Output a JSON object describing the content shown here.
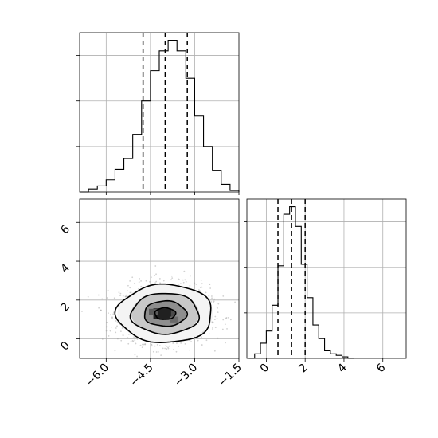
{
  "chart_data": {
    "type": "corner",
    "x_param": {
      "ticks": [
        -6.0,
        -4.5,
        -3.0,
        -1.5
      ],
      "tick_labels": [
        "−6.0",
        "−4.5",
        "−3.0",
        "−1.5"
      ],
      "range": [
        -6.9,
        -1.5
      ],
      "median": -4.0,
      "quantiles": [
        -4.75,
        -4.0,
        -3.25
      ],
      "hist": {
        "bin_edges": [
          -6.9,
          -6.6,
          -6.3,
          -6.0,
          -5.7,
          -5.4,
          -5.1,
          -4.8,
          -4.5,
          -4.2,
          -3.9,
          -3.6,
          -3.3,
          -3.0,
          -2.7,
          -2.4,
          -2.1,
          -1.8,
          -1.5
        ],
        "counts": [
          0.0,
          0.02,
          0.04,
          0.08,
          0.15,
          0.22,
          0.38,
          0.6,
          0.8,
          0.93,
          1.0,
          0.93,
          0.75,
          0.5,
          0.3,
          0.14,
          0.05,
          0.01
        ]
      }
    },
    "y_param": {
      "ticks": [
        0,
        2,
        4,
        6
      ],
      "tick_labels": [
        "0",
        "2",
        "4",
        "6"
      ],
      "range": [
        -1.0,
        7.2
      ],
      "median": 1.3,
      "quantiles": [
        0.6,
        1.3,
        2.0
      ],
      "hist": {
        "bin_edges": [
          -0.9,
          -0.6,
          -0.3,
          0.0,
          0.3,
          0.6,
          0.9,
          1.2,
          1.5,
          1.8,
          2.1,
          2.4,
          2.7,
          3.0,
          3.3,
          3.6,
          3.9,
          4.2,
          4.5
        ],
        "counts": [
          0.0,
          0.03,
          0.1,
          0.18,
          0.35,
          0.61,
          0.95,
          1.0,
          0.87,
          0.62,
          0.4,
          0.22,
          0.13,
          0.05,
          0.03,
          0.02,
          0.01,
          0.0
        ]
      }
    },
    "joint": {
      "center": [
        -4.0,
        1.3
      ],
      "contour_levels": [
        {
          "rx": 0.35,
          "ry": 0.3
        },
        {
          "rx": 0.72,
          "ry": 0.65
        },
        {
          "rx": 1.15,
          "ry": 1.05
        },
        {
          "rx": 1.62,
          "ry": 1.5
        }
      ],
      "sample_cloud": {
        "sx": 0.75,
        "sy": 0.75,
        "n": 1600
      },
      "density_cells": [
        {
          "x": -4.1,
          "y": 1.3,
          "w": 0.6,
          "h": 0.55,
          "shade": "#202020"
        },
        {
          "x": -4.4,
          "y": 1.4,
          "w": 0.3,
          "h": 0.3,
          "shade": "#5a5a5a"
        },
        {
          "x": -3.7,
          "y": 1.0,
          "w": 0.3,
          "h": 0.3,
          "shade": "#6a6a6a"
        }
      ]
    },
    "grid": true,
    "colors": {
      "line": "#000000",
      "grid": "#b0b0b0",
      "scatter": "#9a9a9a"
    }
  }
}
